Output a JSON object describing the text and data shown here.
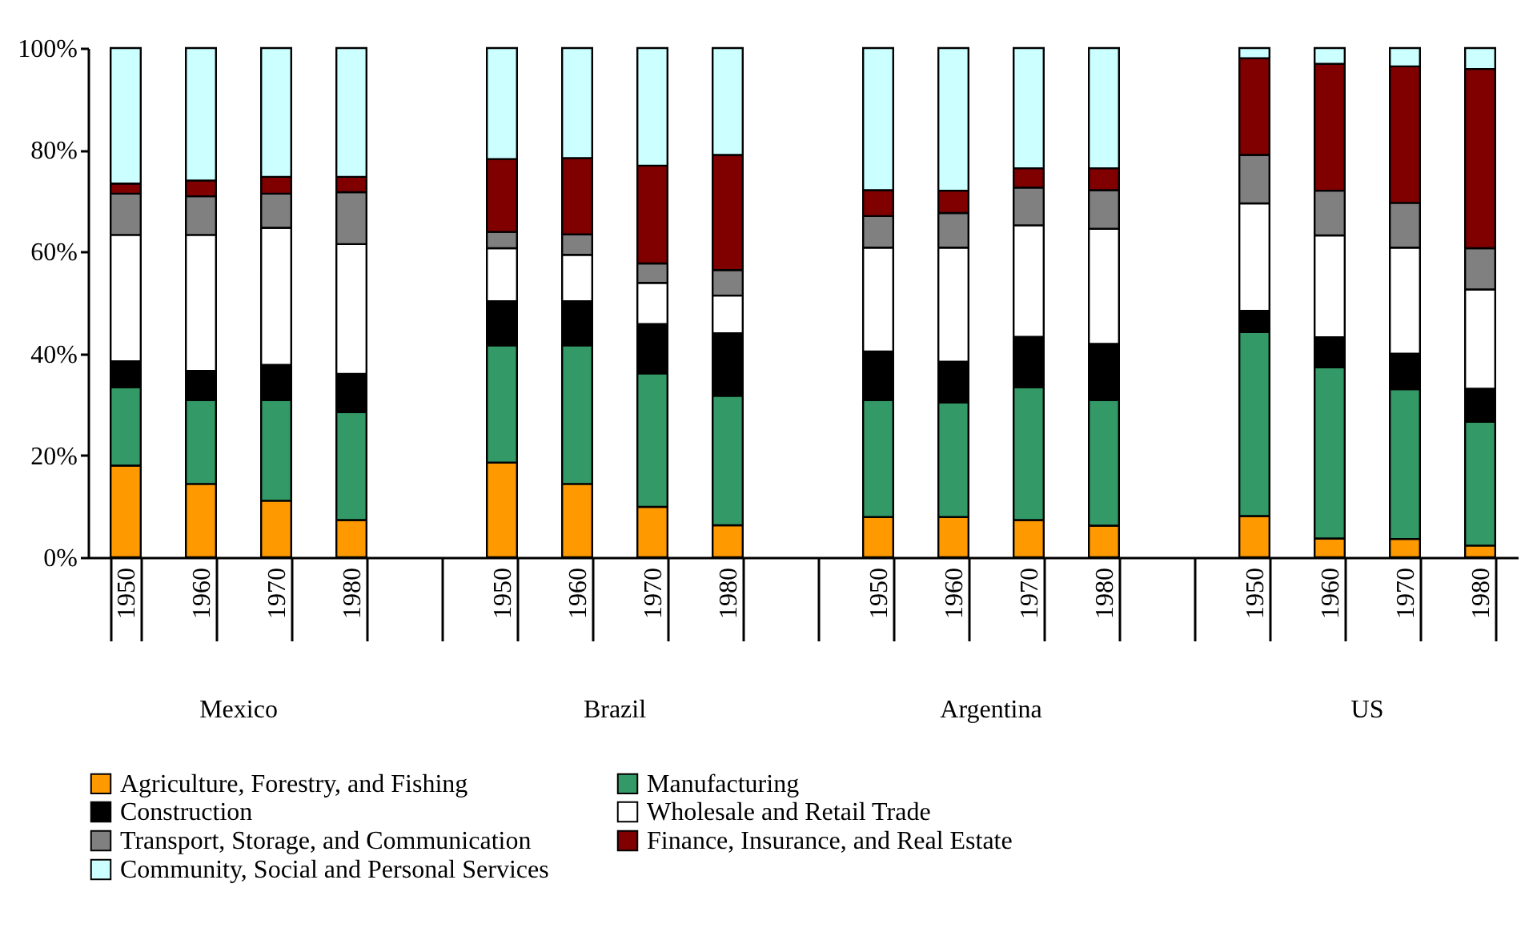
{
  "chart_data": {
    "type": "bar",
    "stacked": true,
    "categories": [
      "1950",
      "1960",
      "1970",
      "1980",
      null,
      "1950",
      "1960",
      "1970",
      "1980",
      null,
      "1950",
      "1960",
      "1970",
      "1980",
      null,
      "1950",
      "1960",
      "1970",
      "1980"
    ],
    "annotations": [
      "Mexico",
      "Brazil",
      "Argentina",
      "US"
    ],
    "series": [
      {
        "name": "Agriculture, Forestry, and Fishing",
        "color": "#ff9900",
        "values": [
          18.0,
          14.4,
          11.1,
          7.3,
          null,
          18.6,
          14.4,
          9.9,
          6.3,
          null,
          7.9,
          7.9,
          7.3,
          6.2,
          null,
          8.1,
          3.7,
          3.6,
          2.3
        ]
      },
      {
        "name": "Manufacturing",
        "color": "#339966",
        "values": [
          15.4,
          16.5,
          19.8,
          21.2,
          null,
          23.0,
          27.2,
          26.2,
          25.4,
          null,
          23.0,
          22.5,
          26.1,
          24.7,
          null,
          36.1,
          33.6,
          29.4,
          24.3
        ]
      },
      {
        "name": "Construction",
        "color": "#000000",
        "values": [
          5.1,
          5.7,
          6.9,
          7.5,
          null,
          8.7,
          8.7,
          9.7,
          12.3,
          null,
          9.5,
          8.0,
          9.9,
          11.0,
          null,
          4.2,
          5.9,
          7.0,
          6.5
        ]
      },
      {
        "name": "Wholesale and Retail Trade",
        "color": "#ffffff",
        "values": [
          24.8,
          26.7,
          26.9,
          25.5,
          null,
          10.4,
          9.1,
          8.1,
          7.4,
          null,
          20.4,
          22.4,
          21.9,
          22.6,
          null,
          21.1,
          20.0,
          20.8,
          19.5
        ]
      },
      {
        "name": "Transport, Storage, and Communication",
        "color": "#808080",
        "values": [
          8.1,
          7.6,
          6.7,
          10.2,
          null,
          3.2,
          4.0,
          3.8,
          5.0,
          null,
          6.2,
          6.8,
          7.4,
          7.6,
          null,
          9.5,
          8.8,
          8.8,
          8.1
        ]
      },
      {
        "name": "Finance, Insurance, and Real Estate",
        "color": "#800000",
        "values": [
          2.0,
          3.1,
          3.3,
          3.0,
          null,
          14.3,
          15.0,
          19.2,
          22.6,
          null,
          5.1,
          4.4,
          3.8,
          4.3,
          null,
          19.0,
          24.9,
          26.8,
          35.2
        ]
      },
      {
        "name": "Community, Social and Personal Services",
        "color": "#ccffff",
        "values": [
          26.6,
          26.0,
          25.3,
          25.3,
          null,
          21.8,
          21.6,
          23.1,
          21.0,
          null,
          27.9,
          28.0,
          23.6,
          23.6,
          null,
          2.0,
          3.1,
          3.6,
          4.1
        ]
      }
    ],
    "ylim": [
      0,
      100
    ],
    "yticks": [
      {
        "value": 0,
        "label": "0%"
      },
      {
        "value": 20,
        "label": "20%"
      },
      {
        "value": 40,
        "label": "40%"
      },
      {
        "value": 60,
        "label": "60%"
      },
      {
        "value": 80,
        "label": "80%"
      },
      {
        "value": 100,
        "label": "100%"
      }
    ],
    "legend": "bottom"
  }
}
